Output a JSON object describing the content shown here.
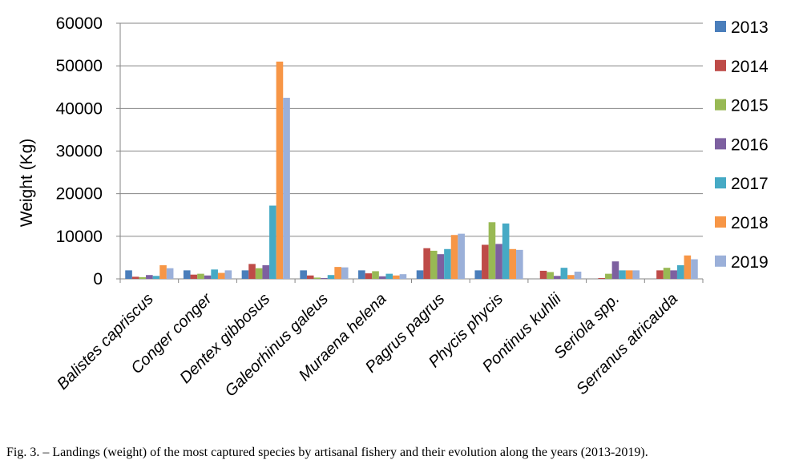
{
  "caption": "Fig. 3. – Landings (weight) of the most captured species by artisanal fishery and their evolution along the years (2013-2019).",
  "chart_data": {
    "type": "bar",
    "title": "",
    "xlabel": "",
    "ylabel": "Weight (Kg)",
    "ylim": [
      0,
      60000
    ],
    "yticks": [
      0,
      10000,
      20000,
      30000,
      40000,
      50000,
      60000
    ],
    "grid": "horizontal",
    "legend_position": "right",
    "categories": [
      "Balistes capriscus",
      "Conger conger",
      "Dentex gibbosus",
      "Galeorhinus galeus",
      "Muraena helena",
      "Pagrus pagrus",
      "Phycis phycis",
      "Pontinus kuhlii",
      "Seriola spp.",
      "Serranus atricauda"
    ],
    "series": [
      {
        "name": "2013",
        "color": "#4a7ebb",
        "values": [
          2000,
          2000,
          2000,
          2000,
          2000,
          2000,
          2000,
          0,
          0,
          0
        ]
      },
      {
        "name": "2014",
        "color": "#be4b48",
        "values": [
          500,
          1000,
          3500,
          800,
          1300,
          7200,
          8000,
          1900,
          200,
          2000
        ]
      },
      {
        "name": "2015",
        "color": "#98b954",
        "values": [
          400,
          1200,
          2500,
          300,
          1800,
          6600,
          13300,
          1600,
          1200,
          2600
        ]
      },
      {
        "name": "2016",
        "color": "#7d60a0",
        "values": [
          900,
          800,
          3200,
          200,
          600,
          5800,
          8200,
          700,
          4100,
          2000
        ]
      },
      {
        "name": "2017",
        "color": "#46aac5",
        "values": [
          700,
          2200,
          17200,
          900,
          1200,
          7000,
          13000,
          2600,
          2000,
          3200
        ]
      },
      {
        "name": "2018",
        "color": "#f79646",
        "values": [
          3200,
          1400,
          51000,
          2800,
          800,
          10300,
          7000,
          900,
          2000,
          5500
        ]
      },
      {
        "name": "2019",
        "color": "#9bb0d9",
        "values": [
          2500,
          2000,
          42500,
          2700,
          1100,
          10600,
          6800,
          1700,
          2000,
          4600
        ]
      }
    ]
  }
}
